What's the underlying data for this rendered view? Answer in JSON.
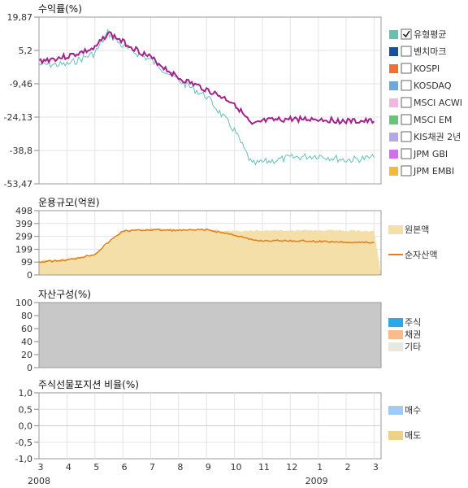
{
  "chart_data": [
    {
      "type": "line",
      "title": "수익률(%)",
      "yticks": [
        "19,87",
        "5,2",
        "-9,46",
        "-24,13",
        "-38,8",
        "-53,47"
      ],
      "ylim": [
        -53.47,
        19.87
      ],
      "x": [
        "2008-03",
        "2008-04",
        "2008-05",
        "2008-05-15",
        "2008-06",
        "2008-07",
        "2008-08",
        "2008-09",
        "2008-10",
        "2008-10-20",
        "2008-11",
        "2008-12",
        "2009-01",
        "2009-02",
        "2009-03"
      ],
      "series": [
        {
          "name": "유형평균",
          "values": [
            0.5,
            2.5,
            6.0,
            13.0,
            9.0,
            2.0,
            -7.0,
            -12.0,
            -18.0,
            -28.0,
            -26.0,
            -25.0,
            -25.0,
            -26.0,
            -26.0
          ]
        },
        {
          "name": "",
          "values": [
            -1.0,
            -1.0,
            4.0,
            13.0,
            7.0,
            1.0,
            -8.0,
            -15.0,
            -30.0,
            -45.0,
            -44.0,
            -42.0,
            -41.0,
            -43.0,
            -42.0
          ]
        }
      ],
      "legend": {
        "placement": "right",
        "items": [
          {
            "label": "유형평균",
            "color": "#66c2b0",
            "checked": true
          },
          {
            "label": "벤치마크",
            "color": "#1a4f9a",
            "checked": false
          },
          {
            "label": "KOSPI",
            "color": "#f07030",
            "checked": false
          },
          {
            "label": "KOSDAQ",
            "color": "#6fa8dc",
            "checked": false
          },
          {
            "label": "MSCI ACWI",
            "color": "#f4b6e0",
            "checked": false
          },
          {
            "label": "MSCI EM",
            "color": "#6cc27a",
            "checked": false
          },
          {
            "label": "KIS채권 2년",
            "color": "#b4a8e8",
            "checked": false
          },
          {
            "label": "JPM GBI",
            "color": "#d070f0",
            "checked": false
          },
          {
            "label": "JPM EMBI",
            "color": "#f5b83c",
            "checked": false
          }
        ]
      },
      "line_colors": {
        "main": "#a3238e",
        "secondary": "#62c2b6"
      },
      "grid": true
    },
    {
      "type": "area",
      "title": "운용규모(억원)",
      "yticks": [
        "498",
        "399",
        "299",
        "199",
        "99",
        "0"
      ],
      "ylim": [
        0,
        498
      ],
      "x": [
        "2008-03",
        "2008-04",
        "2008-05",
        "2008-05-15",
        "2008-06",
        "2008-07",
        "2008-08",
        "2008-09",
        "2008-10",
        "2008-10-20",
        "2008-11",
        "2008-12",
        "2009-01",
        "2009-02",
        "2009-03"
      ],
      "series": [
        {
          "name": "원본액",
          "type": "area",
          "color": "#f5dfa8",
          "values": [
            110,
            125,
            155,
            240,
            340,
            360,
            350,
            350,
            340,
            340,
            345,
            345,
            345,
            345,
            340
          ]
        },
        {
          "name": "순자산액",
          "type": "line",
          "color": "#e0821e",
          "values": [
            100,
            115,
            160,
            250,
            340,
            350,
            345,
            350,
            310,
            270,
            265,
            265,
            260,
            255,
            250
          ]
        }
      ],
      "legend": {
        "placement": "right"
      },
      "grid": true
    },
    {
      "type": "area",
      "title": "자산구성(%)",
      "yticks": [
        "100",
        "80",
        "60",
        "40",
        "20",
        "0"
      ],
      "ylim": [
        0,
        100
      ],
      "series": [
        {
          "name": "주식",
          "color": "#2aa8e8",
          "values": [
            0
          ]
        },
        {
          "name": "채권",
          "color": "#f8bc8c",
          "values": [
            0
          ]
        },
        {
          "name": "기타",
          "color": "#e8e8e0",
          "values": [
            100
          ]
        }
      ],
      "fill_color": "#c8c8c8",
      "legend": {
        "placement": "right"
      }
    },
    {
      "type": "bar",
      "title": "주식선물포지션 비율(%)",
      "yticks": [
        "1,0",
        "0,5",
        "0,0",
        "-0,5",
        "-1,0"
      ],
      "ylim": [
        -1.0,
        1.0
      ],
      "series": [
        {
          "name": "매수",
          "color": "#9dcdf5",
          "values": []
        },
        {
          "name": "매도",
          "color": "#f0cf88",
          "values": []
        }
      ],
      "xticks": [
        "3",
        "4",
        "5",
        "6",
        "7",
        "8",
        "9",
        "10",
        "11",
        "12",
        "1",
        "2",
        "3"
      ],
      "years": [
        "2008",
        "2009"
      ],
      "legend": {
        "placement": "right"
      },
      "grid": true
    }
  ]
}
